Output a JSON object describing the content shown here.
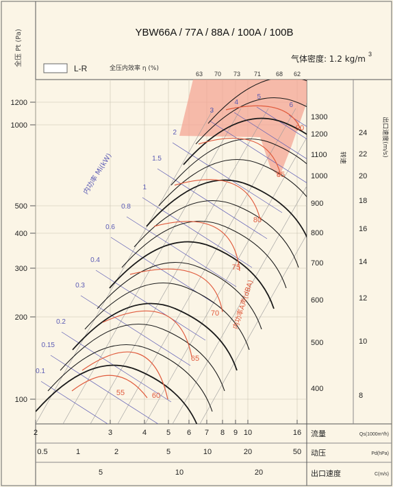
{
  "chart_data": {
    "type": "line",
    "title": "YBW66A / 77A / 88A / 100A / 100B",
    "density_label": "气体密度: 1.2 kg/m",
    "density_sup": "3",
    "legend_label": "L-R",
    "efficiency_header": "全压内效率 η (%)",
    "efficiency_values": [
      "63",
      "70",
      "73",
      "71",
      "68",
      "62"
    ],
    "ylabel": "全压 Pt (Pa)",
    "y_axis": {
      "ticks": [
        100,
        200,
        300,
        400,
        500,
        1000,
        1200
      ],
      "scale": "log"
    },
    "x_axes": [
      {
        "label": "流量",
        "unit": "Qs(1000m³/h)",
        "ticks": [
          "2",
          "3",
          "4",
          "5",
          "6",
          "7",
          "8",
          "9",
          "10",
          "16"
        ]
      },
      {
        "label": "动压",
        "unit": "Pd(hPa)",
        "ticks": [
          "0.5",
          "1",
          "2",
          "5",
          "10",
          "20",
          "50"
        ]
      },
      {
        "label": "出口速度",
        "unit": "C(m/s)",
        "ticks": [
          "5",
          "10",
          "20"
        ]
      }
    ],
    "right_axes": [
      {
        "label": "转速",
        "ticks": [
          "1300",
          "1200",
          "1100",
          "1000",
          "900",
          "800",
          "700",
          "600",
          "500",
          "400"
        ]
      },
      {
        "label": "出口速度(m/s)",
        "ticks": [
          "24",
          "22",
          "20",
          "18",
          "16",
          "14",
          "12",
          "10",
          "8"
        ]
      }
    ],
    "power_label": "内功率 Mi(kW)",
    "power_values": [
      "0.1",
      "0.15",
      "0.2",
      "0.3",
      "0.4",
      "0.6",
      "0.8",
      "1",
      "1.5",
      "2",
      "3",
      "4",
      "5",
      "6"
    ],
    "noise_label": "内功率A声(dBA)",
    "noise_values": [
      "55",
      "60",
      "65",
      "70",
      "75",
      "80",
      "85",
      "90"
    ]
  },
  "colors": {
    "background": "#fbf5e6",
    "fan_curve": "#1a1a1a",
    "efficiency_curve": "#e05a3c",
    "power_line": "#5a5ab4",
    "shaded_region": "#f4a694"
  }
}
